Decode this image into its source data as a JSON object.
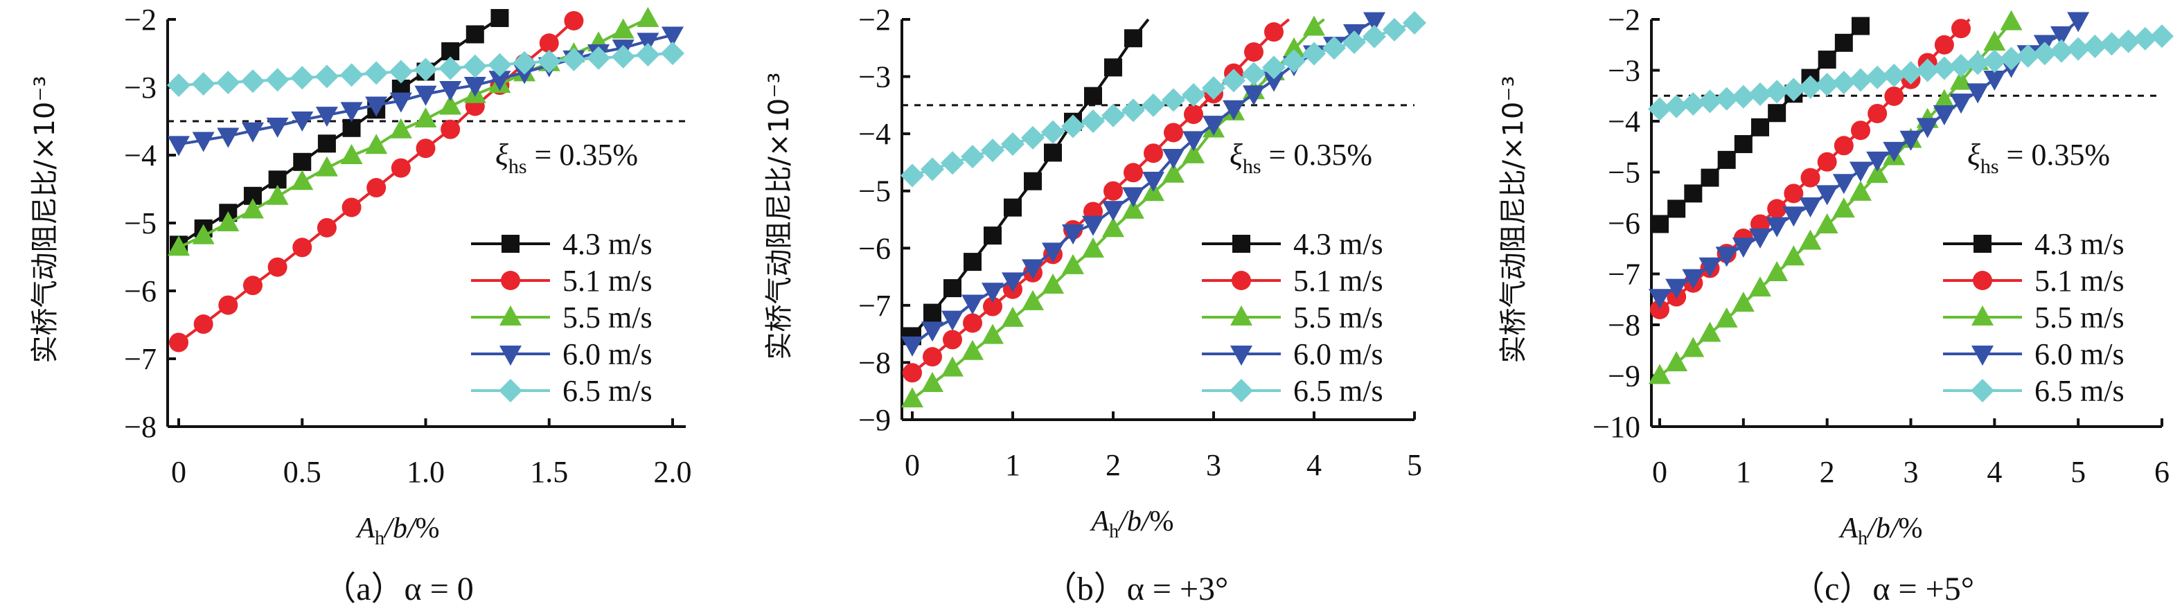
{
  "chart_data": [
    {
      "type": "line",
      "panel": "a",
      "caption": "（a）α = 0",
      "xlabel": "A_h/b/%",
      "ylabel": "实桥气动阻尼比/×10⁻³",
      "xlim": [
        0,
        2.0
      ],
      "ylim": [
        -8,
        -2
      ],
      "xticks": [
        "0",
        "0.5",
        "1.0",
        "1.5",
        "2.0"
      ],
      "xtick_values": [
        0,
        0.5,
        1.0,
        1.5,
        2.0
      ],
      "yticks": [
        "−2",
        "−3",
        "−4",
        "−5",
        "−6",
        "−7",
        "−8"
      ],
      "ytick_values": [
        -2,
        -3,
        -4,
        -5,
        -6,
        -7,
        -8
      ],
      "reference_line": {
        "y": -3.5,
        "style": "dotted",
        "label": "ξhs = 0.35%"
      },
      "legend_position": "bottom-right",
      "series": [
        {
          "name": "4.3 m/s",
          "color": "#111111",
          "marker": "square",
          "x": [
            0,
            0.1,
            0.2,
            0.3,
            0.4,
            0.5,
            0.6,
            0.7,
            0.8,
            0.9,
            1.0,
            1.1,
            1.2,
            1.3
          ],
          "y": [
            -5.32,
            -5.08,
            -4.85,
            -4.6,
            -4.36,
            -4.1,
            -3.83,
            -3.6,
            -3.33,
            -3.02,
            -2.77,
            -2.47,
            -2.22,
            -1.98
          ]
        },
        {
          "name": "5.1 m/s",
          "color": "#e8252c",
          "marker": "circle",
          "x": [
            0,
            0.1,
            0.2,
            0.3,
            0.4,
            0.5,
            0.6,
            0.7,
            0.8,
            0.9,
            1.0,
            1.1,
            1.2,
            1.3,
            1.4,
            1.5,
            1.6
          ],
          "y": [
            -6.76,
            -6.49,
            -6.21,
            -5.92,
            -5.65,
            -5.36,
            -5.07,
            -4.77,
            -4.48,
            -4.19,
            -3.9,
            -3.62,
            -3.28,
            -2.97,
            -2.65,
            -2.35,
            -2.02
          ]
        },
        {
          "name": "5.5 m/s",
          "color": "#66bf33",
          "marker": "triangle-up",
          "x": [
            0,
            0.1,
            0.2,
            0.3,
            0.4,
            0.5,
            0.6,
            0.7,
            0.8,
            0.9,
            1.0,
            1.1,
            1.2,
            1.3,
            1.4,
            1.5,
            1.6,
            1.7,
            1.8,
            1.9
          ],
          "y": [
            -5.36,
            -5.19,
            -5.0,
            -4.81,
            -4.61,
            -4.39,
            -4.19,
            -4.01,
            -3.86,
            -3.63,
            -3.47,
            -3.28,
            -3.11,
            -2.96,
            -2.79,
            -2.64,
            -2.51,
            -2.35,
            -2.16,
            -1.99
          ]
        },
        {
          "name": "6.0 m/s",
          "color": "#3552a8",
          "marker": "triangle-down",
          "x": [
            0,
            0.1,
            0.2,
            0.3,
            0.4,
            0.5,
            0.6,
            0.7,
            0.8,
            0.9,
            1.0,
            1.1,
            1.2,
            1.3,
            1.4,
            1.5,
            1.6,
            1.7,
            1.8,
            1.9,
            2.0
          ],
          "y": [
            -3.84,
            -3.78,
            -3.72,
            -3.64,
            -3.57,
            -3.48,
            -3.41,
            -3.34,
            -3.26,
            -3.2,
            -3.1,
            -3.03,
            -2.97,
            -2.88,
            -2.78,
            -2.68,
            -2.58,
            -2.49,
            -2.42,
            -2.32,
            -2.23
          ]
        },
        {
          "name": "6.5 m/s",
          "color": "#78cfd2",
          "marker": "diamond",
          "x": [
            0,
            0.1,
            0.2,
            0.3,
            0.4,
            0.5,
            0.6,
            0.7,
            0.8,
            0.9,
            1.0,
            1.1,
            1.2,
            1.3,
            1.4,
            1.5,
            1.6,
            1.7,
            1.8,
            1.9,
            2.0
          ],
          "y": [
            -2.97,
            -2.95,
            -2.93,
            -2.91,
            -2.89,
            -2.86,
            -2.84,
            -2.82,
            -2.79,
            -2.77,
            -2.74,
            -2.72,
            -2.69,
            -2.67,
            -2.64,
            -2.62,
            -2.59,
            -2.57,
            -2.55,
            -2.52,
            -2.5
          ]
        }
      ]
    },
    {
      "type": "line",
      "panel": "b",
      "caption": "（b）α = +3°",
      "xlabel": "A_h/b/%",
      "ylabel": "实桥气动阻尼比/×10⁻³",
      "xlim": [
        0,
        5
      ],
      "ylim": [
        -9,
        -2
      ],
      "xticks": [
        "0",
        "1",
        "2",
        "3",
        "4",
        "5"
      ],
      "xtick_values": [
        0,
        1,
        2,
        3,
        4,
        5
      ],
      "yticks": [
        "−2",
        "−3",
        "−4",
        "−5",
        "−6",
        "−7",
        "−8",
        "−9"
      ],
      "ytick_values": [
        -2,
        -3,
        -4,
        -5,
        -6,
        -7,
        -8,
        -9
      ],
      "reference_line": {
        "y": -3.5,
        "style": "dotted",
        "label": "ξhs = 0.35%"
      },
      "legend_position": "bottom-right",
      "series": [
        {
          "name": "4.3 m/s",
          "color": "#111111",
          "marker": "square",
          "x": [
            0,
            0.2,
            0.4,
            0.6,
            0.8,
            1.0,
            1.2,
            1.4,
            1.6,
            1.8,
            2.0,
            2.2
          ],
          "y": [
            -7.54,
            -7.13,
            -6.7,
            -6.24,
            -5.78,
            -5.29,
            -4.83,
            -4.33,
            -3.79,
            -3.34,
            -2.84,
            -2.33
          ],
          "line_extends_to": [
            2.35,
            -2.0
          ]
        },
        {
          "name": "5.1 m/s",
          "color": "#e8252c",
          "marker": "circle",
          "x": [
            0,
            0.2,
            0.4,
            0.6,
            0.8,
            1.0,
            1.2,
            1.4,
            1.6,
            1.8,
            2.0,
            2.2,
            2.4,
            2.6,
            2.8,
            3.0,
            3.2,
            3.4,
            3.6
          ],
          "y": [
            -8.18,
            -7.9,
            -7.6,
            -7.31,
            -7.02,
            -6.72,
            -6.43,
            -6.11,
            -5.68,
            -5.36,
            -5.0,
            -4.68,
            -4.34,
            -3.98,
            -3.66,
            -3.3,
            -2.94,
            -2.57,
            -2.22
          ],
          "line_extends_to": [
            3.75,
            -2.0
          ]
        },
        {
          "name": "5.5 m/s",
          "color": "#66bf33",
          "marker": "triangle-up",
          "x": [
            0,
            0.2,
            0.4,
            0.6,
            0.8,
            1.0,
            1.2,
            1.4,
            1.6,
            1.8,
            2.0,
            2.2,
            2.4,
            2.6,
            2.8,
            3.0,
            3.2,
            3.4,
            3.6,
            3.8,
            4.0
          ],
          "y": [
            -8.64,
            -8.37,
            -8.1,
            -7.81,
            -7.53,
            -7.23,
            -6.94,
            -6.65,
            -6.31,
            -6.02,
            -5.66,
            -5.34,
            -5.03,
            -4.71,
            -4.37,
            -3.92,
            -3.62,
            -3.25,
            -2.92,
            -2.52,
            -2.14
          ],
          "line_extends_to": [
            4.1,
            -2.0
          ]
        },
        {
          "name": "6.0 m/s",
          "color": "#3552a8",
          "marker": "triangle-down",
          "x": [
            0,
            0.2,
            0.4,
            0.6,
            0.8,
            1.0,
            1.2,
            1.4,
            1.6,
            1.8,
            2.0,
            2.2,
            2.4,
            2.6,
            2.8,
            3.0,
            3.2,
            3.4,
            3.6,
            3.8,
            4.0,
            4.2,
            4.4,
            4.6
          ],
          "y": [
            -7.69,
            -7.43,
            -7.24,
            -6.96,
            -6.75,
            -6.57,
            -6.34,
            -6.05,
            -5.73,
            -5.58,
            -5.32,
            -5.08,
            -4.81,
            -4.41,
            -4.1,
            -3.83,
            -3.56,
            -3.3,
            -3.06,
            -2.79,
            -2.6,
            -2.45,
            -2.23,
            -2.02
          ]
        },
        {
          "name": "6.5 m/s",
          "color": "#78cfd2",
          "marker": "diamond",
          "x": [
            0,
            0.2,
            0.4,
            0.6,
            0.8,
            1.0,
            1.2,
            1.4,
            1.6,
            1.8,
            2.0,
            2.2,
            2.4,
            2.6,
            2.8,
            3.0,
            3.2,
            3.4,
            3.6,
            3.8,
            4.0,
            4.2,
            4.4,
            4.6,
            4.8,
            5.0
          ],
          "y": [
            -4.73,
            -4.62,
            -4.51,
            -4.4,
            -4.29,
            -4.18,
            -4.07,
            -3.97,
            -3.87,
            -3.78,
            -3.68,
            -3.59,
            -3.5,
            -3.41,
            -3.32,
            -3.2,
            -3.07,
            -2.95,
            -2.84,
            -2.73,
            -2.6,
            -2.5,
            -2.4,
            -2.3,
            -2.18,
            -2.06
          ]
        }
      ]
    },
    {
      "type": "line",
      "panel": "c",
      "caption": "（c）α = +5°",
      "xlabel": "A_h/b/%",
      "ylabel": "实桥气动阻尼比/×10⁻³",
      "xlim": [
        0,
        6
      ],
      "ylim": [
        -10,
        -2
      ],
      "xticks": [
        "0",
        "1",
        "2",
        "3",
        "4",
        "5",
        "6"
      ],
      "xtick_values": [
        0,
        1,
        2,
        3,
        4,
        5,
        6
      ],
      "yticks": [
        "−2",
        "−3",
        "−4",
        "−5",
        "−6",
        "−7",
        "−8",
        "−9",
        "−10"
      ],
      "ytick_values": [
        -2,
        -3,
        -4,
        -5,
        -6,
        -7,
        -8,
        -9,
        -10
      ],
      "reference_line": {
        "y": -3.5,
        "style": "dotted",
        "label": "ξhs = 0.35%"
      },
      "legend_position": "bottom-right",
      "series": [
        {
          "name": "4.3 m/s",
          "color": "#111111",
          "marker": "square",
          "x": [
            0,
            0.2,
            0.4,
            0.6,
            0.8,
            1.0,
            1.2,
            1.4,
            1.6,
            1.8,
            2.0,
            2.2,
            2.4
          ],
          "y": [
            -6.02,
            -5.72,
            -5.42,
            -5.11,
            -4.76,
            -4.45,
            -4.12,
            -3.84,
            -3.46,
            -3.15,
            -2.79,
            -2.46,
            -2.13
          ]
        },
        {
          "name": "5.1 m/s",
          "color": "#e8252c",
          "marker": "circle",
          "x": [
            0,
            0.2,
            0.4,
            0.6,
            0.8,
            1.0,
            1.2,
            1.4,
            1.6,
            1.8,
            2.0,
            2.2,
            2.4,
            2.6,
            2.8,
            3.0,
            3.2,
            3.4,
            3.6
          ],
          "y": [
            -7.7,
            -7.45,
            -7.18,
            -6.89,
            -6.6,
            -6.3,
            -6.02,
            -5.72,
            -5.42,
            -5.11,
            -4.8,
            -4.48,
            -4.18,
            -3.85,
            -3.51,
            -3.18,
            -2.85,
            -2.5,
            -2.18
          ],
          "line_extends_to": [
            3.7,
            -2.0
          ]
        },
        {
          "name": "5.5 m/s",
          "color": "#66bf33",
          "marker": "triangle-up",
          "x": [
            0,
            0.2,
            0.4,
            0.6,
            0.8,
            1.0,
            1.2,
            1.4,
            1.6,
            1.8,
            2.0,
            2.2,
            2.4,
            2.6,
            2.8,
            3.0,
            3.2,
            3.4,
            3.6,
            3.8,
            4.0,
            4.2
          ],
          "y": [
            -9.0,
            -8.75,
            -8.47,
            -8.17,
            -7.89,
            -7.58,
            -7.28,
            -6.98,
            -6.67,
            -6.36,
            -6.04,
            -5.73,
            -5.4,
            -5.05,
            -4.7,
            -4.36,
            -3.97,
            -3.6,
            -3.22,
            -2.83,
            -2.45,
            -2.05
          ]
        },
        {
          "name": "6.0 m/s",
          "color": "#3552a8",
          "marker": "triangle-down",
          "x": [
            0,
            0.2,
            0.4,
            0.6,
            0.8,
            1.0,
            1.2,
            1.4,
            1.6,
            1.8,
            2.0,
            2.2,
            2.4,
            2.6,
            2.8,
            3.0,
            3.2,
            3.4,
            3.6,
            3.8,
            4.0,
            4.2,
            4.4,
            4.6,
            4.8,
            5.0
          ],
          "y": [
            -7.46,
            -7.26,
            -7.07,
            -6.84,
            -6.63,
            -6.45,
            -6.27,
            -6.05,
            -5.84,
            -5.66,
            -5.42,
            -5.2,
            -4.96,
            -4.76,
            -4.57,
            -4.35,
            -4.1,
            -3.85,
            -3.62,
            -3.42,
            -3.17,
            -2.92,
            -2.67,
            -2.47,
            -2.3,
            -2.02
          ]
        },
        {
          "name": "6.5 m/s",
          "color": "#78cfd2",
          "marker": "diamond",
          "x": [
            0,
            0.2,
            0.4,
            0.6,
            0.8,
            1.0,
            1.2,
            1.4,
            1.6,
            1.8,
            2.0,
            2.2,
            2.4,
            2.6,
            2.8,
            3.0,
            3.2,
            3.4,
            3.6,
            3.8,
            4.0,
            4.2,
            4.4,
            4.6,
            4.8,
            5.0,
            5.2,
            5.4,
            5.6,
            5.8,
            6.0
          ],
          "y": [
            -3.76,
            -3.71,
            -3.66,
            -3.61,
            -3.56,
            -3.52,
            -3.47,
            -3.42,
            -3.38,
            -3.33,
            -3.28,
            -3.24,
            -3.19,
            -3.14,
            -3.1,
            -3.05,
            -3.0,
            -2.96,
            -2.91,
            -2.86,
            -2.82,
            -2.77,
            -2.72,
            -2.67,
            -2.62,
            -2.58,
            -2.53,
            -2.48,
            -2.43,
            -2.38,
            -2.33
          ]
        }
      ]
    }
  ]
}
